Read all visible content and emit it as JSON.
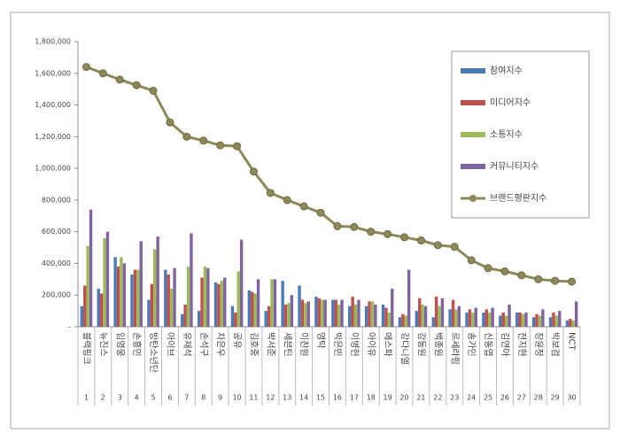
{
  "chart_data": {
    "type": "combo",
    "categories": [
      "블랙핑크",
      "뉴진스",
      "임영웅",
      "손흥민",
      "방탄소년단",
      "아이브",
      "유재석",
      "손석구",
      "차은우",
      "공유",
      "김호중",
      "박서준",
      "세븐틴",
      "이찬원",
      "영탁",
      "박은빈",
      "이병헌",
      "아이유",
      "에스파",
      "강다니엘",
      "강동원",
      "백종원",
      "르세라핌",
      "송가인",
      "신동엽",
      "김연아",
      "전지현",
      "장윤정",
      "박보검",
      "NCT"
    ],
    "ranks": [
      1,
      2,
      3,
      4,
      5,
      6,
      7,
      8,
      9,
      10,
      11,
      12,
      13,
      14,
      15,
      16,
      17,
      18,
      19,
      20,
      21,
      22,
      23,
      24,
      25,
      26,
      27,
      28,
      29,
      30
    ],
    "series": [
      {
        "name": "참여지수",
        "type": "bar",
        "color": "#4a7ab8",
        "values": [
          130000,
          240000,
          440000,
          330000,
          170000,
          360000,
          80000,
          100000,
          280000,
          130000,
          230000,
          100000,
          290000,
          260000,
          190000,
          170000,
          130000,
          130000,
          140000,
          60000,
          100000,
          60000,
          110000,
          90000,
          90000,
          70000,
          90000,
          60000,
          60000,
          40000
        ]
      },
      {
        "name": "미디어지수",
        "type": "bar",
        "color": "#c0504d",
        "values": [
          260000,
          210000,
          380000,
          360000,
          270000,
          330000,
          140000,
          310000,
          270000,
          90000,
          220000,
          130000,
          140000,
          170000,
          180000,
          170000,
          190000,
          160000,
          120000,
          80000,
          180000,
          190000,
          170000,
          110000,
          110000,
          90000,
          90000,
          80000,
          90000,
          50000
        ]
      },
      {
        "name": "소통지수",
        "type": "bar",
        "color": "#9bbb59",
        "values": [
          510000,
          560000,
          440000,
          360000,
          490000,
          240000,
          380000,
          380000,
          290000,
          350000,
          210000,
          300000,
          150000,
          150000,
          170000,
          140000,
          140000,
          160000,
          90000,
          70000,
          140000,
          130000,
          110000,
          90000,
          90000,
          70000,
          80000,
          70000,
          70000,
          40000
        ]
      },
      {
        "name": "커뮤니티지수",
        "type": "bar",
        "color": "#8064a2",
        "values": [
          740000,
          600000,
          400000,
          540000,
          570000,
          370000,
          590000,
          370000,
          310000,
          550000,
          300000,
          300000,
          200000,
          160000,
          170000,
          170000,
          170000,
          140000,
          240000,
          360000,
          130000,
          180000,
          130000,
          120000,
          120000,
          140000,
          90000,
          110000,
          100000,
          160000
        ]
      },
      {
        "name": "브랜드평판지수",
        "type": "line",
        "color": "#8c8a5a",
        "values": [
          1640000,
          1600000,
          1560000,
          1525000,
          1490000,
          1290000,
          1200000,
          1175000,
          1145000,
          1140000,
          980000,
          845000,
          800000,
          760000,
          720000,
          635000,
          630000,
          600000,
          585000,
          565000,
          545000,
          515000,
          505000,
          420000,
          370000,
          350000,
          325000,
          300000,
          290000,
          285000
        ]
      }
    ],
    "ylim": [
      0,
      1800000
    ],
    "yticks": [
      {
        "value": 0,
        "label": "-"
      },
      {
        "value": 200000,
        "label": "200,000"
      },
      {
        "value": 400000,
        "label": "400,000"
      },
      {
        "value": 600000,
        "label": "600,000"
      },
      {
        "value": 800000,
        "label": "800,000"
      },
      {
        "value": 1000000,
        "label": "1,000,000"
      },
      {
        "value": 1200000,
        "label": "1,200,000"
      },
      {
        "value": 1400000,
        "label": "1,400,000"
      },
      {
        "value": 1600000,
        "label": "1,600,000"
      },
      {
        "value": 1800000,
        "label": "1,800,000"
      }
    ],
    "legend": "right"
  }
}
